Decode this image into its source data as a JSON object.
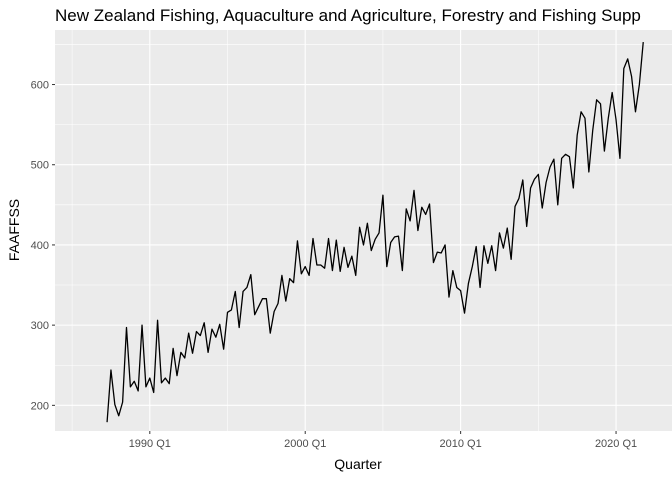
{
  "chart_data": {
    "type": "line",
    "title": "New Zealand Fishing, Aquaculture and Agriculture, Forestry and Fishing Supp",
    "xlabel": "Quarter",
    "ylabel": "FAAFFSS",
    "x_ticks": [
      {
        "label": "1990 Q1",
        "value": 1990.0
      },
      {
        "label": "2000 Q1",
        "value": 2000.0
      },
      {
        "label": "2010 Q1",
        "value": 2010.0
      },
      {
        "label": "2020 Q1",
        "value": 2020.0
      }
    ],
    "y_ticks": [
      200,
      300,
      400,
      500,
      600
    ],
    "xlim": [
      1983.9,
      2023.6
    ],
    "ylim": [
      168,
      668
    ],
    "series": [
      {
        "color": "#000000",
        "start": "1987 Q2",
        "values": [
          179,
          244,
          201,
          187,
          204,
          297,
          223,
          230,
          218,
          300,
          223,
          234,
          216,
          306,
          228,
          234,
          227,
          271,
          237,
          266,
          259,
          290,
          265,
          292,
          287,
          303,
          266,
          295,
          285,
          301,
          270,
          316,
          319,
          342,
          297,
          342,
          347,
          363,
          313,
          323,
          333,
          333,
          290,
          317,
          327,
          362,
          330,
          358,
          353,
          405,
          364,
          373,
          362,
          408,
          375,
          375,
          371,
          408,
          368,
          406,
          367,
          397,
          372,
          386,
          362,
          422,
          400,
          427,
          393,
          407,
          415,
          462,
          373,
          403,
          410,
          411,
          368,
          445,
          430,
          468,
          418,
          447,
          438,
          451,
          378,
          391,
          390,
          400,
          335,
          368,
          347,
          343,
          315,
          352,
          373,
          398,
          347,
          399,
          377,
          399,
          368,
          415,
          396,
          421,
          382,
          448,
          458,
          481,
          423,
          471,
          482,
          488,
          446,
          478,
          497,
          507,
          450,
          508,
          513,
          510,
          471,
          537,
          566,
          558,
          491,
          543,
          581,
          576,
          517,
          558,
          590,
          556,
          508,
          620,
          632,
          610,
          566,
          600,
          653
        ]
      }
    ]
  }
}
